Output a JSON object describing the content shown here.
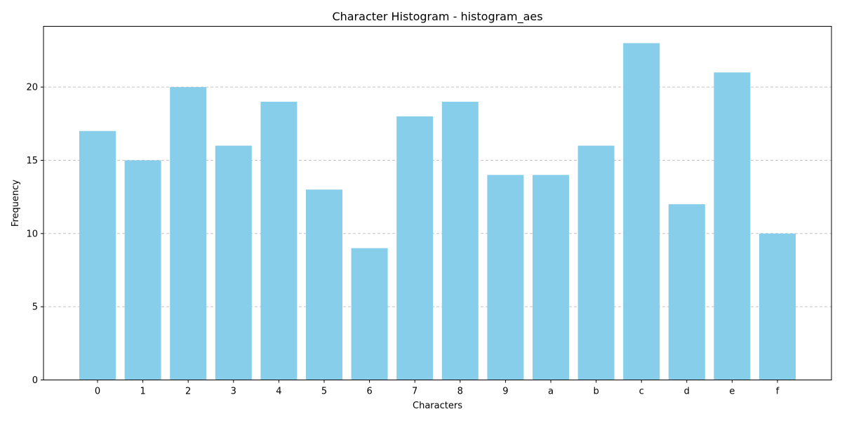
{
  "chart_data": {
    "type": "bar",
    "title": "Character Histogram - histogram_aes",
    "xlabel": "Characters",
    "ylabel": "Frequency",
    "categories": [
      "0",
      "1",
      "2",
      "3",
      "4",
      "5",
      "6",
      "7",
      "8",
      "9",
      "a",
      "b",
      "c",
      "d",
      "e",
      "f"
    ],
    "values": [
      17,
      15,
      20,
      16,
      19,
      13,
      9,
      18,
      19,
      14,
      14,
      16,
      23,
      12,
      21,
      10
    ],
    "ylim": [
      0,
      24.15
    ],
    "yticks": [
      0,
      5,
      10,
      15,
      20
    ],
    "grid": true,
    "grid_axis": "y",
    "bar_color": "#87CEEB"
  }
}
